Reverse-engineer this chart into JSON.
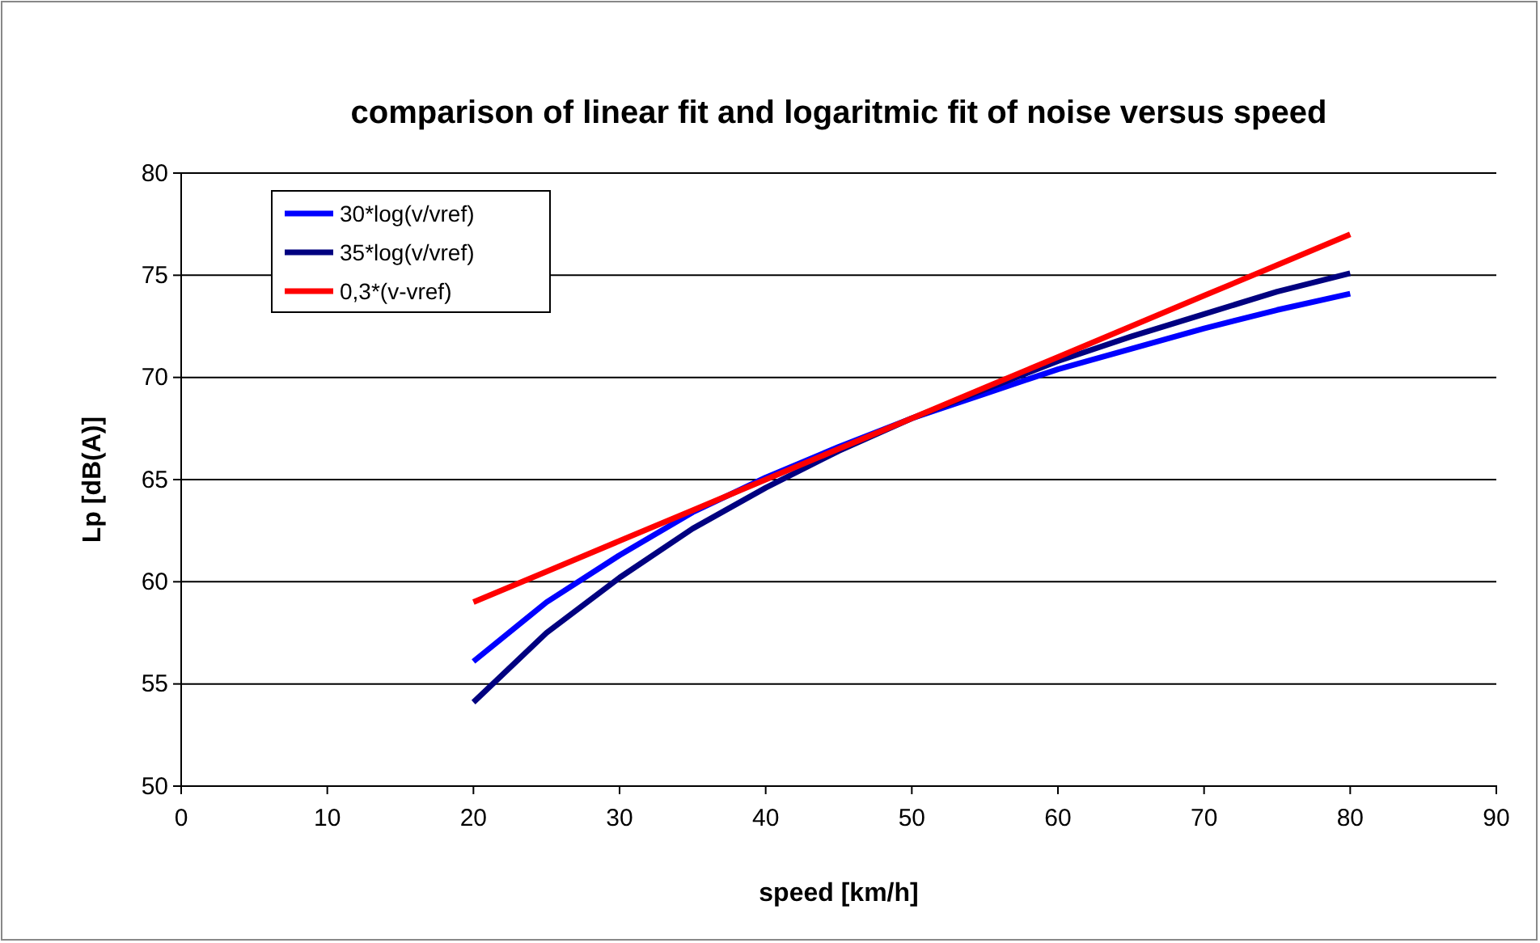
{
  "chart_data": {
    "type": "line",
    "title": "comparison of linear fit and logaritmic fit of noise versus speed",
    "xlabel": "speed [km/h]",
    "ylabel": "Lp [dB(A)]",
    "x": [
      20,
      25,
      30,
      35,
      40,
      45,
      50,
      55,
      60,
      65,
      70,
      75,
      80
    ],
    "series": [
      {
        "name": "30*log(v/vref)",
        "color": "#0000ff",
        "values": [
          56.1,
          59.0,
          61.3,
          63.4,
          65.1,
          66.6,
          68,
          69.2,
          70.4,
          71.4,
          72.4,
          73.3,
          74.1
        ]
      },
      {
        "name": "35*log(v/vref)",
        "color": "#000080",
        "values": [
          54.1,
          57.5,
          60.2,
          62.6,
          64.6,
          66.4,
          68,
          69.4,
          70.8,
          72.0,
          73.1,
          74.2,
          75.1
        ]
      },
      {
        "name": "0,3*(v-vref)",
        "color": "#ff0000",
        "values": [
          59,
          60.5,
          62,
          63.5,
          65,
          66.5,
          68,
          69.5,
          71,
          72.5,
          74,
          75.5,
          77
        ]
      }
    ],
    "xlim": [
      0,
      90
    ],
    "xticks": [
      0,
      10,
      20,
      30,
      40,
      50,
      60,
      70,
      80,
      90
    ],
    "ylim": [
      50,
      80
    ],
    "yticks": [
      50,
      55,
      60,
      65,
      70,
      75,
      80
    ],
    "grid": "y",
    "legend": "top left",
    "marker": "none",
    "line_style": "solid"
  }
}
